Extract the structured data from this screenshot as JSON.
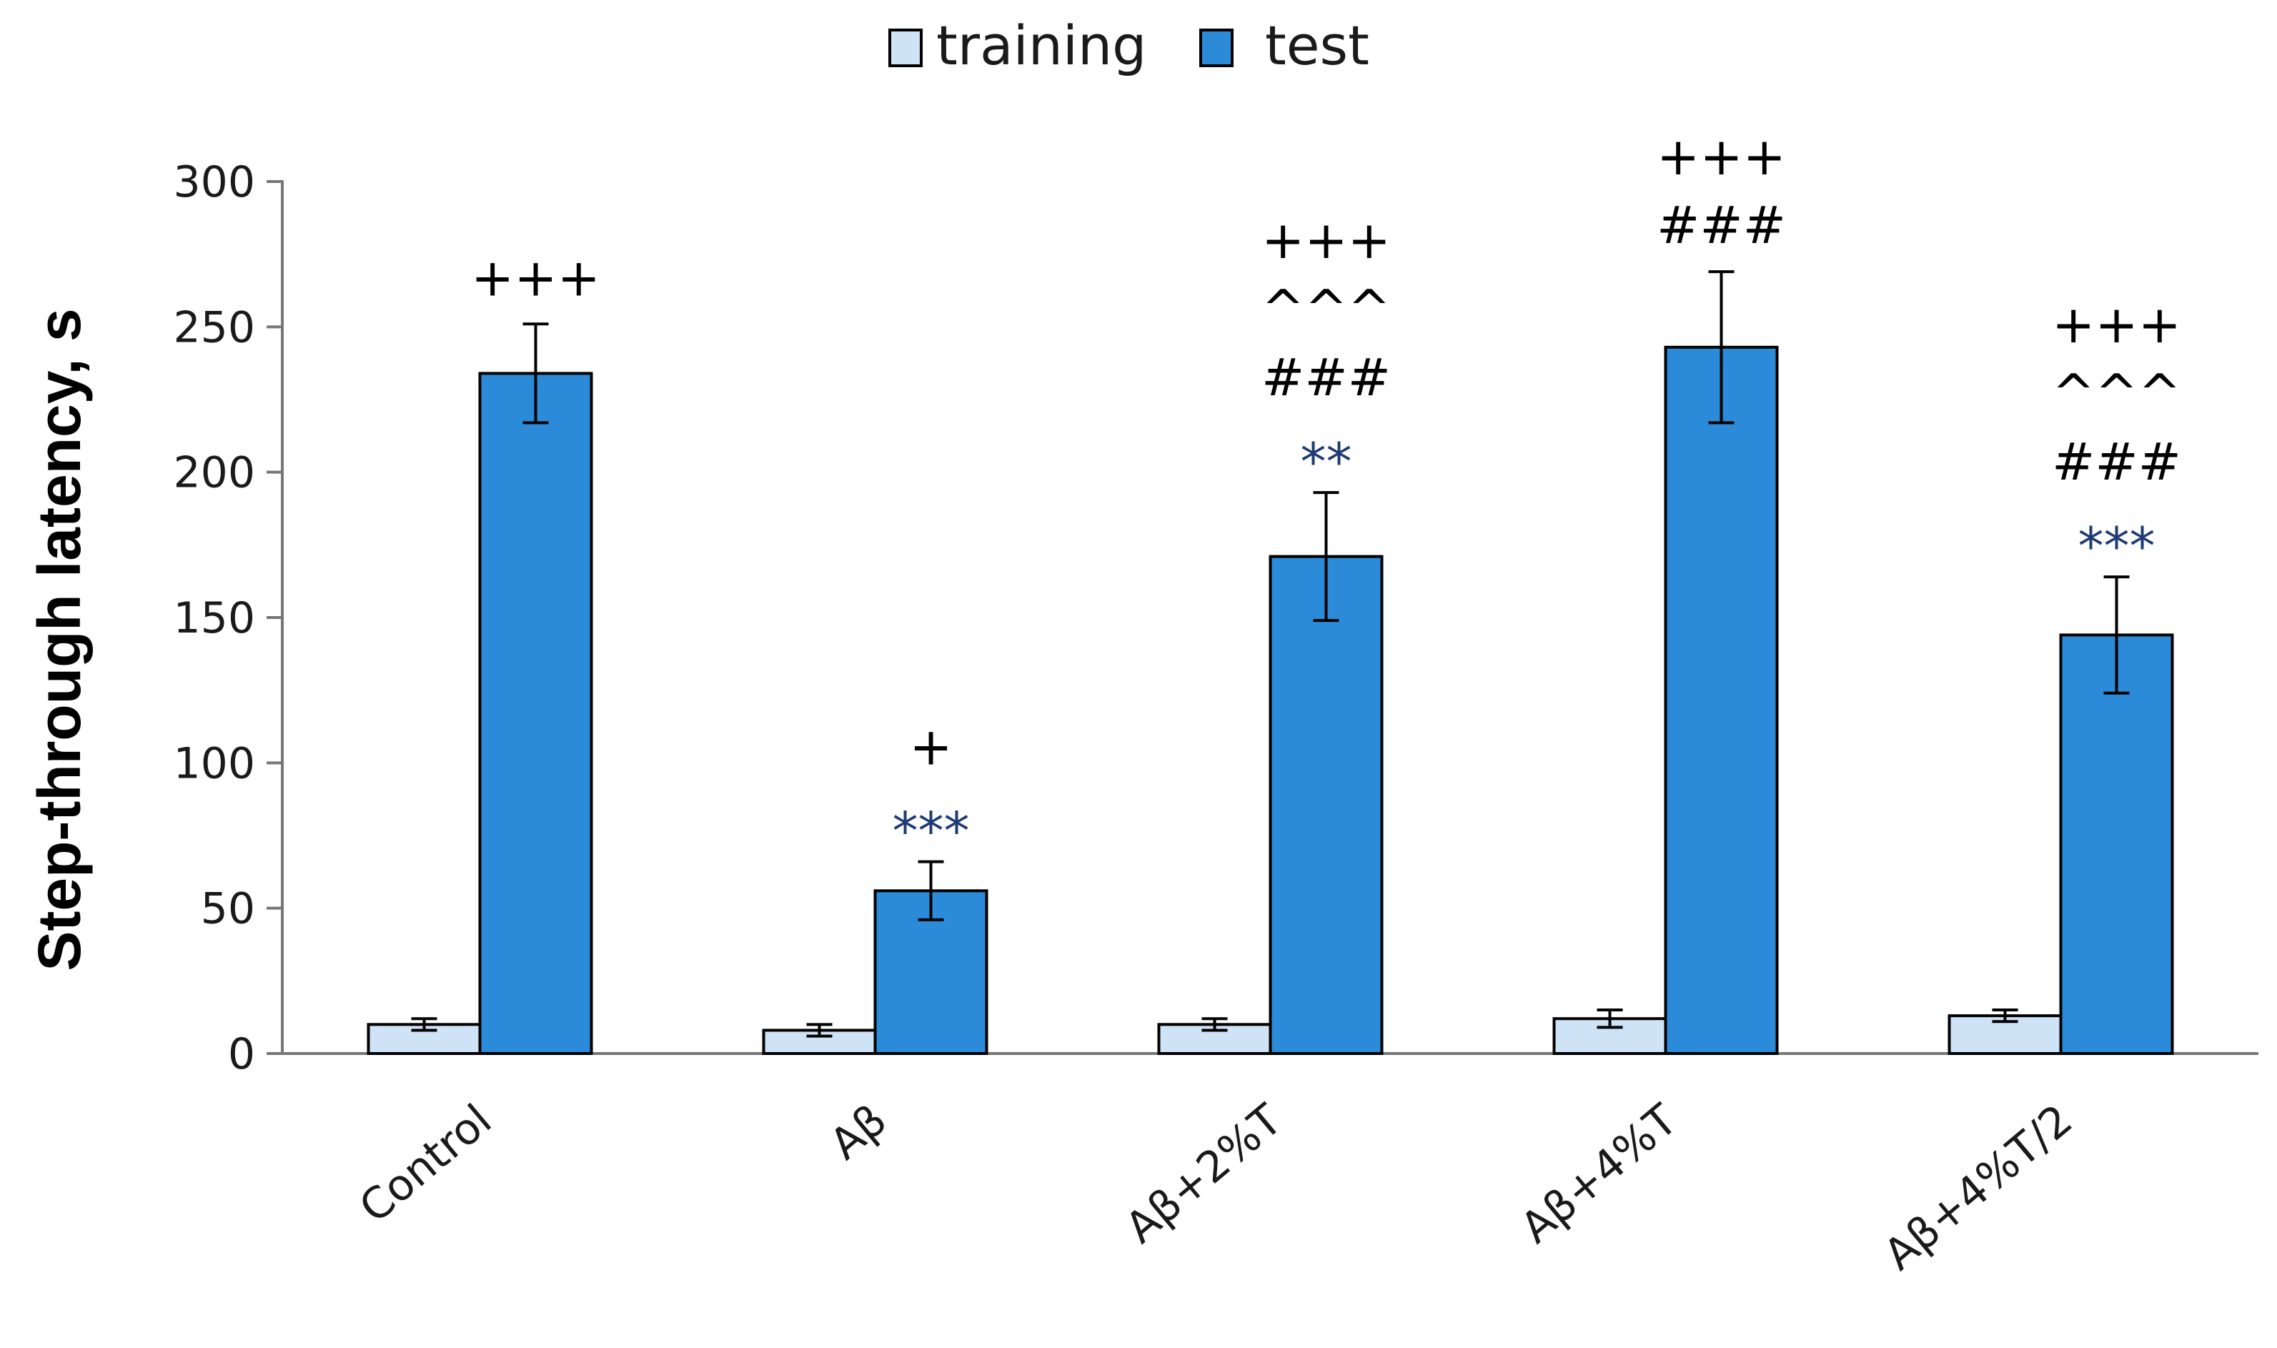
{
  "chart_data": {
    "type": "bar",
    "title": "",
    "xlabel": "",
    "ylabel": "Step-through latency, s",
    "ylim": [
      0,
      300
    ],
    "yticks": [
      0,
      50,
      100,
      150,
      200,
      250,
      300
    ],
    "grid": false,
    "legend_position": "top-center",
    "categories": [
      "Control",
      "Aβ",
      "Aβ+2%T",
      "Aβ+4%T",
      "Aβ+4%T/2"
    ],
    "series": [
      {
        "name": "training",
        "color": "#cfe3f7",
        "values": [
          10,
          8,
          10,
          12,
          13
        ],
        "errors": [
          2,
          2,
          2,
          3,
          2
        ]
      },
      {
        "name": "test",
        "color": "#2b8bd8",
        "values": [
          234,
          56,
          171,
          243,
          144
        ],
        "errors": [
          17,
          10,
          22,
          26,
          20
        ]
      }
    ],
    "annotations": [
      [
        "+++"
      ],
      [
        "+",
        "***"
      ],
      [
        "+++",
        "^^^",
        "###",
        "**"
      ],
      [
        "+++",
        "###"
      ],
      [
        "+++",
        "^^^",
        "###",
        "***"
      ]
    ]
  }
}
